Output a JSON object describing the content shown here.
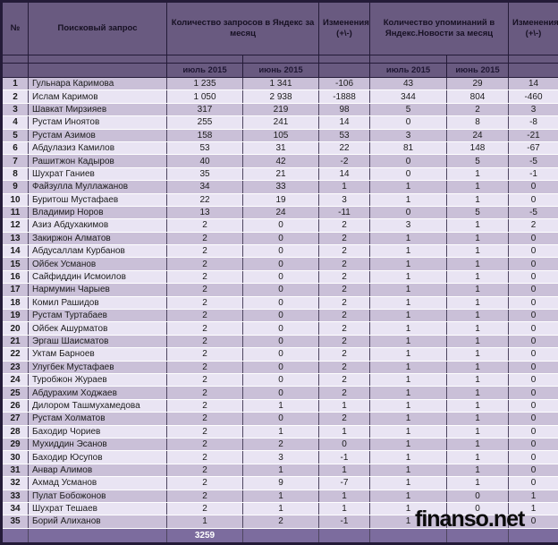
{
  "table": {
    "header": {
      "col_no": "№",
      "col_query": "Поисковый запрос",
      "col_yandex_requests": "Количество запросов в Яндекс за месяц",
      "col_changes_1": "Изменения (+\\-)",
      "col_news_mentions": "Количество упоминаний в Яндекс.Новости за месяц",
      "col_changes_2": "Изменения (+\\-)"
    },
    "subheader": {
      "requests_jul": "июль 2015",
      "requests_jun": "июнь 2015",
      "news_jul": "июль 2015",
      "news_jun": "июнь 2015"
    },
    "rows": [
      [
        "1",
        "Гульнара Каримова",
        "1 235",
        "1 341",
        "-106",
        "43",
        "29",
        "14"
      ],
      [
        "2",
        "Ислам Каримов",
        "1 050",
        "2 938",
        "-1888",
        "344",
        "804",
        "-460"
      ],
      [
        "3",
        "Шавкат Мирзияев",
        "317",
        "219",
        "98",
        "5",
        "2",
        "3"
      ],
      [
        "4",
        "Рустам Иноятов",
        "255",
        "241",
        "14",
        "0",
        "8",
        "-8"
      ],
      [
        "5",
        "Рустам Азимов",
        "158",
        "105",
        "53",
        "3",
        "24",
        "-21"
      ],
      [
        "6",
        "Абдулазиз Камилов",
        "53",
        "31",
        "22",
        "81",
        "148",
        "-67"
      ],
      [
        "7",
        "Рашитжон Кадыров",
        "40",
        "42",
        "-2",
        "0",
        "5",
        "-5"
      ],
      [
        "8",
        "Шухрат Ганиев",
        "35",
        "21",
        "14",
        "0",
        "1",
        "-1"
      ],
      [
        "9",
        "Файзулла Муллажанов",
        "34",
        "33",
        "1",
        "1",
        "1",
        "0"
      ],
      [
        "10",
        "Буритош Мустафаев",
        "22",
        "19",
        "3",
        "1",
        "1",
        "0"
      ],
      [
        "11",
        "Владимир Норов",
        "13",
        "24",
        "-11",
        "0",
        "5",
        "-5"
      ],
      [
        "12",
        "Азиз Абдухакимов",
        "2",
        "0",
        "2",
        "3",
        "1",
        "2"
      ],
      [
        "13",
        "Закиржон Алматов",
        "2",
        "0",
        "2",
        "1",
        "1",
        "0"
      ],
      [
        "14",
        "Абдусаллам Курбанов",
        "2",
        "0",
        "2",
        "1",
        "1",
        "0"
      ],
      [
        "15",
        "Ойбек Усманов",
        "2",
        "0",
        "2",
        "1",
        "1",
        "0"
      ],
      [
        "16",
        "Сайфиддин Исмоилов",
        "2",
        "0",
        "2",
        "1",
        "1",
        "0"
      ],
      [
        "17",
        "Нармумин Чарыев",
        "2",
        "0",
        "2",
        "1",
        "1",
        "0"
      ],
      [
        "18",
        "Комил Рашидов",
        "2",
        "0",
        "2",
        "1",
        "1",
        "0"
      ],
      [
        "19",
        "Рустам Туртабаев",
        "2",
        "0",
        "2",
        "1",
        "1",
        "0"
      ],
      [
        "20",
        "Ойбек Ашурматов",
        "2",
        "0",
        "2",
        "1",
        "1",
        "0"
      ],
      [
        "21",
        "Эргаш Шаисматов",
        "2",
        "0",
        "2",
        "1",
        "1",
        "0"
      ],
      [
        "22",
        "Уктам Барноев",
        "2",
        "0",
        "2",
        "1",
        "1",
        "0"
      ],
      [
        "23",
        "Улугбек Мустафаев",
        "2",
        "0",
        "2",
        "1",
        "1",
        "0"
      ],
      [
        "24",
        "Туробжон Жураев",
        "2",
        "0",
        "2",
        "1",
        "1",
        "0"
      ],
      [
        "25",
        "Абдурахим Ходжаев",
        "2",
        "0",
        "2",
        "1",
        "1",
        "0"
      ],
      [
        "26",
        "Дилором Ташмухамедова",
        "2",
        "1",
        "1",
        "1",
        "1",
        "0"
      ],
      [
        "27",
        "Рустам Холматов",
        "2",
        "0",
        "2",
        "1",
        "1",
        "0"
      ],
      [
        "28",
        "Баходир Чориев",
        "2",
        "1",
        "1",
        "1",
        "1",
        "0"
      ],
      [
        "29",
        "Мухиддин Эсанов",
        "2",
        "2",
        "0",
        "1",
        "1",
        "0"
      ],
      [
        "30",
        "Баходир Юсупов",
        "2",
        "3",
        "-1",
        "1",
        "1",
        "0"
      ],
      [
        "31",
        "Анвар Алимов",
        "2",
        "1",
        "1",
        "1",
        "1",
        "0"
      ],
      [
        "32",
        "Ахмад Усманов",
        "2",
        "9",
        "-7",
        "1",
        "1",
        "0"
      ],
      [
        "33",
        "Пулат Бобожонов",
        "2",
        "1",
        "1",
        "1",
        "0",
        "1"
      ],
      [
        "34",
        "Шухрат Тешаев",
        "2",
        "1",
        "1",
        "1",
        "0",
        "1"
      ],
      [
        "35",
        "Борий Алиханов",
        "1",
        "2",
        "-1",
        "1",
        "1",
        "0"
      ]
    ],
    "footer_total": "3259"
  },
  "watermark": "finanso.net",
  "colors": {
    "header_bg": "#695a80",
    "row_odd_bg": "#cac0d8",
    "row_even_bg": "#e9e4f3",
    "footer_bg": "#7c6c9e",
    "border_dark": "#241b38"
  }
}
